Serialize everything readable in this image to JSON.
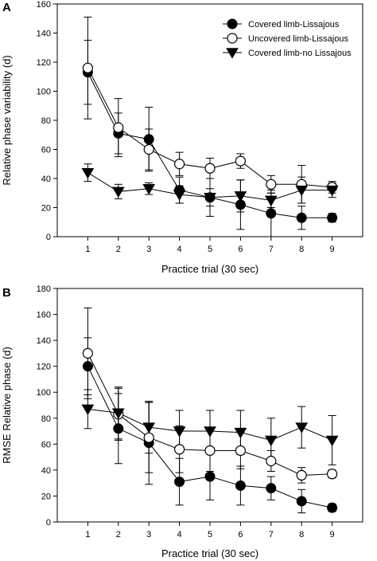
{
  "chart_data": [
    {
      "panel": "A",
      "type": "line",
      "xlabel": "Practice trial (30 sec)",
      "ylabel": "Relative phase variability (d)",
      "x": [
        1,
        2,
        3,
        4,
        5,
        6,
        7,
        8,
        9
      ],
      "xlim": [
        0,
        10
      ],
      "ylim": [
        0,
        160
      ],
      "yticks": [
        0,
        20,
        40,
        60,
        80,
        100,
        120,
        140,
        160
      ],
      "legend": "top-right",
      "series": [
        {
          "name": "Covered limb-Lissajous",
          "marker": "filled-circle",
          "values": [
            113,
            71,
            67,
            32,
            27,
            22,
            16,
            13,
            13
          ],
          "error": [
            22,
            14,
            22,
            9,
            13,
            17,
            16,
            8,
            3
          ]
        },
        {
          "name": "Uncovered limb-Lissajous",
          "marker": "open-circle",
          "values": [
            116,
            75,
            60,
            50,
            47,
            52,
            36,
            36,
            34
          ],
          "error": [
            35,
            20,
            14,
            8,
            7,
            5,
            6,
            13,
            4
          ]
        },
        {
          "name": "Covered limb-no Lissajous",
          "marker": "filled-triangle-down",
          "values": [
            44,
            31,
            33,
            29,
            27,
            28,
            25,
            32,
            32
          ],
          "error": [
            6,
            5,
            4,
            6,
            6,
            11,
            5,
            9,
            5
          ]
        }
      ]
    },
    {
      "panel": "B",
      "type": "line",
      "xlabel": "Practice trial (30 sec)",
      "ylabel": "RMSE Relative phase (d)",
      "x": [
        1,
        2,
        3,
        4,
        5,
        6,
        7,
        8,
        9
      ],
      "xlim": [
        0,
        10
      ],
      "ylim": [
        0,
        180
      ],
      "yticks": [
        0,
        20,
        40,
        60,
        80,
        100,
        120,
        140,
        160,
        180
      ],
      "series": [
        {
          "name": "Covered limb-Lissajous",
          "marker": "filled-circle",
          "values": [
            120,
            72,
            61,
            31,
            35,
            28,
            26,
            16,
            11
          ],
          "error": [
            22,
            27,
            32,
            18,
            18,
            15,
            9,
            9,
            3
          ]
        },
        {
          "name": "Uncovered limb-Lissajous",
          "marker": "open-circle",
          "values": [
            130,
            83,
            65,
            56,
            55,
            55,
            47,
            36,
            37
          ],
          "error": [
            35,
            20,
            27,
            18,
            16,
            14,
            8,
            6,
            3
          ]
        },
        {
          "name": "Covered limb-no Lissajous",
          "marker": "filled-triangle-down",
          "values": [
            87,
            84,
            73,
            70,
            70,
            69,
            63,
            73,
            63
          ],
          "error": [
            15,
            20,
            20,
            16,
            16,
            17,
            17,
            16,
            19
          ]
        }
      ]
    }
  ]
}
